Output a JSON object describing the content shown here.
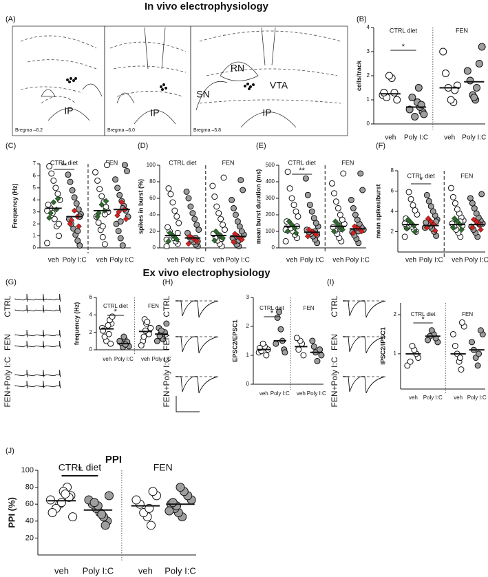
{
  "headings": [
    "In vivo electrophysiology",
    "Ex vivo electrophysiology"
  ],
  "atlas": {
    "label": "(A)",
    "regions": [
      "RN",
      "SN",
      "VTA",
      "IP",
      "IP",
      "IP"
    ],
    "bregma": [
      "Bregma –6.2",
      "Bregma –6.0",
      "Bregma –5.8"
    ]
  },
  "chart_data": [
    {
      "type": "scatter",
      "label": "(B)",
      "ylabel": "cells/track",
      "group_labels": [
        "CTRL diet",
        "FEN"
      ],
      "categories": [
        "veh",
        "Poly I:C",
        "veh",
        "Poly I:C"
      ],
      "ylim": [
        0,
        4
      ],
      "yticks": [
        0,
        1,
        2,
        3,
        4
      ],
      "colors": [
        "#ffffff",
        "#9e9e9e",
        "#ffffff",
        "#9e9e9e"
      ],
      "significance": "*",
      "values": [
        [
          1.2,
          1.0,
          1.3,
          1.9,
          2.0,
          1.1,
          1.3
        ],
        [
          0.5,
          0.7,
          0.9,
          0.3,
          1.1,
          0.6,
          0.4,
          0.8,
          1.5
        ],
        [
          0.9,
          1.0,
          1.5,
          2.1,
          3.0,
          1.6,
          1.4
        ],
        [
          1.0,
          1.2,
          1.8,
          2.2,
          3.2,
          2.5,
          1.5,
          1.1
        ]
      ],
      "means": [
        1.25,
        0.7,
        1.5,
        1.75
      ]
    },
    {
      "type": "scatter",
      "label": "(C)",
      "ylabel": "Frequency (Hz)",
      "group_labels": [
        "CTRL diet",
        "FEN"
      ],
      "categories": [
        "veh",
        "Poly I:C",
        "veh",
        "Poly I:C"
      ],
      "ylim": [
        0,
        7
      ],
      "yticks": [
        0,
        1,
        2,
        3,
        4,
        5,
        6,
        7
      ],
      "colors": [
        "#ffffff",
        "#9e9e9e",
        "#ffffff",
        "#9e9e9e"
      ],
      "significance": "**",
      "values": [
        [
          0.4,
          1.0,
          1.8,
          2.4,
          2.9,
          3.3,
          3.6,
          4.0,
          4.5,
          5.0,
          5.6,
          6.2,
          6.8,
          3.1,
          2.0
        ],
        [
          0.2,
          0.6,
          1.1,
          1.6,
          2.0,
          2.4,
          2.8,
          3.2,
          3.7,
          4.2,
          4.8,
          5.5,
          6.1,
          2.6,
          1.4
        ],
        [
          0.3,
          0.9,
          1.5,
          2.1,
          2.6,
          3.0,
          3.4,
          3.8,
          4.3,
          4.9,
          5.6,
          6.3,
          6.9,
          2.8,
          1.8
        ],
        [
          0.2,
          0.8,
          1.4,
          2.0,
          2.6,
          3.1,
          3.5,
          3.9,
          4.4,
          5.0,
          5.7,
          6.4,
          6.9,
          3.3,
          2.2
        ]
      ],
      "highlight_values": [
        [
          2.5,
          3.2,
          3.8,
          2.9,
          4.1
        ],
        [
          2.0,
          2.6,
          3.1,
          2.3,
          1.8
        ],
        [
          2.6,
          3.1,
          3.6,
          2.9,
          3.9
        ],
        [
          2.7,
          3.2,
          3.8,
          3.0,
          2.4
        ]
      ],
      "highlight_colors": [
        "#2e6b2e",
        "#d62020",
        "#2e6b2e",
        "#d62020"
      ],
      "means": [
        3.3,
        2.6,
        3.1,
        3.2
      ]
    },
    {
      "type": "scatter",
      "label": "(D)",
      "ylabel": "spikes in burst (%)",
      "group_labels": [
        "CTRL diet",
        "FEN"
      ],
      "categories": [
        "veh",
        "Poly I:C",
        "veh",
        "Poly I:C"
      ],
      "ylim": [
        0,
        100
      ],
      "yticks": [
        0,
        20,
        40,
        60,
        80,
        100
      ],
      "colors": [
        "#ffffff",
        "#9e9e9e",
        "#ffffff",
        "#9e9e9e"
      ],
      "values": [
        [
          2,
          5,
          8,
          12,
          15,
          20,
          25,
          30,
          38,
          45,
          55,
          65,
          72,
          10,
          18
        ],
        [
          2,
          4,
          7,
          10,
          13,
          18,
          22,
          28,
          35,
          42,
          50,
          60,
          68,
          8,
          12
        ],
        [
          2,
          5,
          9,
          13,
          17,
          22,
          28,
          35,
          42,
          50,
          62,
          75,
          85,
          11,
          15
        ],
        [
          2,
          4,
          8,
          12,
          16,
          20,
          26,
          32,
          40,
          48,
          58,
          70,
          82,
          9,
          14
        ]
      ],
      "highlight_values": [
        [
          8,
          12,
          15,
          18,
          10
        ],
        [
          5,
          10,
          12,
          14,
          8
        ],
        [
          9,
          13,
          16,
          20,
          12
        ],
        [
          7,
          11,
          14,
          17,
          10
        ]
      ],
      "highlight_colors": [
        "#2e6b2e",
        "#d62020",
        "#2e6b2e",
        "#d62020"
      ],
      "means": [
        15,
        12,
        15,
        14
      ]
    },
    {
      "type": "scatter",
      "label": "(E)",
      "ylabel": "mean burst duration (ms)",
      "group_labels": [
        "CTRL diet",
        "FEN"
      ],
      "categories": [
        "veh",
        "Poly I:C",
        "veh",
        "Poly I:C"
      ],
      "ylim": [
        0,
        500
      ],
      "yticks": [
        0,
        100,
        200,
        300,
        400,
        500
      ],
      "colors": [
        "#ffffff",
        "#9e9e9e",
        "#ffffff",
        "#9e9e9e"
      ],
      "significance": "**",
      "values": [
        [
          40,
          60,
          80,
          100,
          120,
          140,
          160,
          190,
          220,
          260,
          300,
          360,
          460,
          110,
          130
        ],
        [
          30,
          50,
          70,
          85,
          95,
          110,
          130,
          150,
          180,
          220,
          260,
          320,
          420,
          80,
          100
        ],
        [
          40,
          60,
          85,
          105,
          125,
          145,
          170,
          200,
          240,
          280,
          330,
          390,
          450,
          115,
          135
        ],
        [
          30,
          55,
          75,
          95,
          110,
          125,
          145,
          170,
          200,
          240,
          290,
          350,
          450,
          100,
          120
        ]
      ],
      "highlight_values": [
        [
          100,
          120,
          140,
          160,
          90
        ],
        [
          70,
          90,
          100,
          110,
          80
        ],
        [
          100,
          120,
          140,
          160,
          110
        ],
        [
          90,
          110,
          120,
          130,
          100
        ]
      ],
      "highlight_colors": [
        "#2e6b2e",
        "#d62020",
        "#2e6b2e",
        "#d62020"
      ],
      "means": [
        130,
        95,
        130,
        115
      ]
    },
    {
      "type": "scatter",
      "label": "(F)",
      "ylabel": "mean spikes/burst",
      "group_labels": [
        "CTRL diet",
        "FEN"
      ],
      "categories": [
        "veh",
        "Poly I:C",
        "veh",
        "Poly I:C"
      ],
      "ylim": [
        0,
        8
      ],
      "yticks": [
        2,
        4,
        6,
        8
      ],
      "colors": [
        "#ffffff",
        "#9e9e9e",
        "#ffffff",
        "#9e9e9e"
      ],
      "significance": "*",
      "values": [
        [
          1.5,
          2.0,
          2.2,
          2.5,
          2.7,
          3.0,
          3.3,
          3.7,
          4.1,
          4.6,
          5.2,
          5.9,
          2.4,
          2.8
        ],
        [
          1.6,
          2.0,
          2.3,
          2.5,
          2.7,
          2.9,
          3.2,
          3.6,
          4.0,
          4.5,
          5.0,
          5.6,
          2.4,
          3.0
        ],
        [
          1.5,
          1.9,
          2.2,
          2.5,
          2.8,
          3.1,
          3.4,
          3.8,
          4.2,
          4.8,
          5.4,
          6.3,
          2.6,
          3.0
        ],
        [
          1.5,
          1.9,
          2.2,
          2.5,
          2.8,
          3.1,
          3.4,
          3.8,
          4.3,
          4.8,
          5.3,
          5.7,
          2.7,
          2.9
        ]
      ],
      "highlight_values": [
        [
          2.3,
          2.6,
          2.9,
          3.2,
          2.0
        ],
        [
          2.4,
          2.7,
          3.0,
          3.3,
          2.1
        ],
        [
          2.4,
          2.7,
          3.0,
          3.3,
          2.2
        ],
        [
          2.4,
          2.7,
          3.0,
          3.2,
          2.2
        ]
      ],
      "highlight_colors": [
        "#2e6b2e",
        "#d62020",
        "#2e6b2e",
        "#d62020"
      ],
      "means": [
        2.7,
        2.6,
        2.7,
        2.7
      ]
    },
    {
      "type": "scatter",
      "label": "(G)",
      "ylabel": "frequency (Hz)",
      "trace_labels": [
        "CTRL",
        "FEN",
        "FEN+Poly I:C"
      ],
      "group_labels": [
        "CTRL diet",
        "FEN"
      ],
      "categories": [
        "veh",
        "Poly I:C",
        "veh",
        "Poly I:C"
      ],
      "ylim": [
        0,
        6
      ],
      "yticks": [
        0,
        2,
        4,
        6
      ],
      "colors": [
        "#ffffff",
        "#9e9e9e",
        "#ffffff",
        "#9e9e9e"
      ],
      "significance": "*",
      "values": [
        [
          2.5,
          3.0,
          3.4,
          2.8,
          1.0,
          1.5,
          2.2,
          3.8,
          0.7,
          1.8
        ],
        [
          0.5,
          0.7,
          1.2,
          0.3,
          0.8,
          1.0,
          0.4,
          0.9,
          0.6,
          1.5
        ],
        [
          2.0,
          3.0,
          3.5,
          1.0,
          0.5,
          2.5,
          1.8,
          3.2,
          2.2,
          1.5
        ],
        [
          1.5,
          1.8,
          2.5,
          1.0,
          3.0,
          2.0,
          1.2,
          2.2,
          1.6
        ]
      ],
      "means": [
        2.4,
        0.7,
        2.1,
        1.8
      ]
    },
    {
      "type": "scatter",
      "label": "(H)",
      "ylabel": "EPSC2/EPSC1",
      "trace_labels": [
        "CTRL",
        "FEN",
        "FEN+Poly I:C"
      ],
      "group_labels": [
        "CTRL diet",
        "FEN"
      ],
      "categories": [
        "veh",
        "Poly I:C",
        "veh",
        "Poly I:C"
      ],
      "ylim": [
        0,
        3
      ],
      "yticks": [
        0,
        1,
        2,
        3
      ],
      "colors": [
        "#ffffff",
        "#9e9e9e",
        "#ffffff",
        "#9e9e9e"
      ],
      "significance": "*",
      "values": [
        [
          1.1,
          1.2,
          1.0,
          1.3,
          1.4,
          1.15,
          1.25
        ],
        [
          1.2,
          1.5,
          1.9,
          2.5,
          2.3,
          1.4,
          1.1
        ],
        [
          1.0,
          1.4,
          1.5,
          1.2,
          1.6
        ],
        [
          0.8,
          1.1,
          1.3,
          1.5,
          1.0,
          1.2
        ]
      ],
      "means": [
        1.2,
        1.5,
        1.3,
        1.1
      ]
    },
    {
      "type": "scatter",
      "label": "(I)",
      "ylabel": "IPSC2/IPSC1",
      "trace_labels": [
        "CTRL",
        "FEN",
        "FEN+Poly I:C"
      ],
      "group_labels": [
        "CTRL diet",
        "FEN"
      ],
      "categories": [
        "veh",
        "Poly I:C",
        "veh",
        "Poly I:C"
      ],
      "ylim": [
        0.1,
        2.3
      ],
      "yticks": [
        1,
        2
      ],
      "colors": [
        "#ffffff",
        "#9e9e9e",
        "#ffffff",
        "#9e9e9e"
      ],
      "significance": "*",
      "values": [
        [
          0.7,
          0.9,
          1.0,
          1.1,
          1.2,
          0.8
        ],
        [
          1.3,
          1.4,
          1.5,
          1.6,
          1.45,
          1.35
        ],
        [
          0.6,
          0.8,
          1.0,
          1.2,
          1.5,
          1.7,
          1.8,
          0.9
        ],
        [
          0.7,
          0.9,
          1.1,
          1.3,
          1.5,
          1.6,
          1.0
        ]
      ],
      "means": [
        1.0,
        1.45,
        1.0,
        1.1
      ]
    },
    {
      "type": "scatter",
      "label": "(J)",
      "title": "PPI",
      "ylabel": "PPI (%)",
      "group_labels": [
        "CTRL diet",
        "FEN"
      ],
      "categories": [
        "veh",
        "Poly I:C",
        "veh",
        "Poly I:C"
      ],
      "ylim": [
        0,
        100
      ],
      "yticks": [
        20,
        40,
        60,
        80,
        100
      ],
      "colors": [
        "#ffffff",
        "#9e9e9e",
        "#ffffff",
        "#9e9e9e"
      ],
      "significance": "*",
      "values": [
        [
          65,
          70,
          80,
          75,
          60,
          55,
          50,
          45,
          68,
          72,
          62
        ],
        [
          40,
          45,
          50,
          55,
          60,
          65,
          70,
          35,
          48,
          58,
          62
        ],
        [
          35,
          45,
          50,
          60,
          65,
          70,
          75,
          55
        ],
        [
          45,
          50,
          55,
          60,
          65,
          70,
          75,
          80,
          58,
          62,
          52
        ]
      ],
      "means": [
        64,
        53,
        58,
        60
      ]
    }
  ]
}
